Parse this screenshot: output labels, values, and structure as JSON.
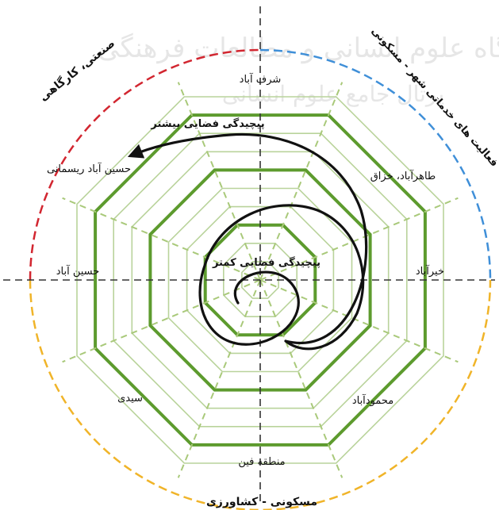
{
  "watermark": {
    "line1": "پژوهشگاه علوم انسانی و مطالعات فرهنگی",
    "line2": "پرتال جامع علوم انسانی"
  },
  "colors": {
    "red_arc": "#d22630",
    "blue_arc": "#3f8fd8",
    "yellow_arc": "#f0b429",
    "ring_dark": "#5d9b2e",
    "ring_light": "#b9d39b",
    "spoke": "#a9c97a",
    "axis": "#333333",
    "spiral": "#111111"
  },
  "arc_labels": {
    "top_left": "صنعتی، کارگاهی",
    "top_right": "فعالیت های خدماتی شهر - مسکونی",
    "bottom": "مسکونی - کشاورزی"
  },
  "axis_labels": {
    "n": "شرف آباد",
    "ne": "طاهرآباد، خزاق",
    "e": "خیرآباد",
    "se": "محمودآباد",
    "s": "منطقه فین",
    "sw": "سیدی",
    "w": "حسین آباد",
    "nw": "حسین آباد ریسمانی"
  },
  "spiral_labels": {
    "more": "پیچیدگی فضایی بیشتر",
    "less": "پیچیدگی فضایی کمتر"
  },
  "rings": {
    "count": 10,
    "dark_levels": [
      3,
      6,
      9
    ]
  }
}
